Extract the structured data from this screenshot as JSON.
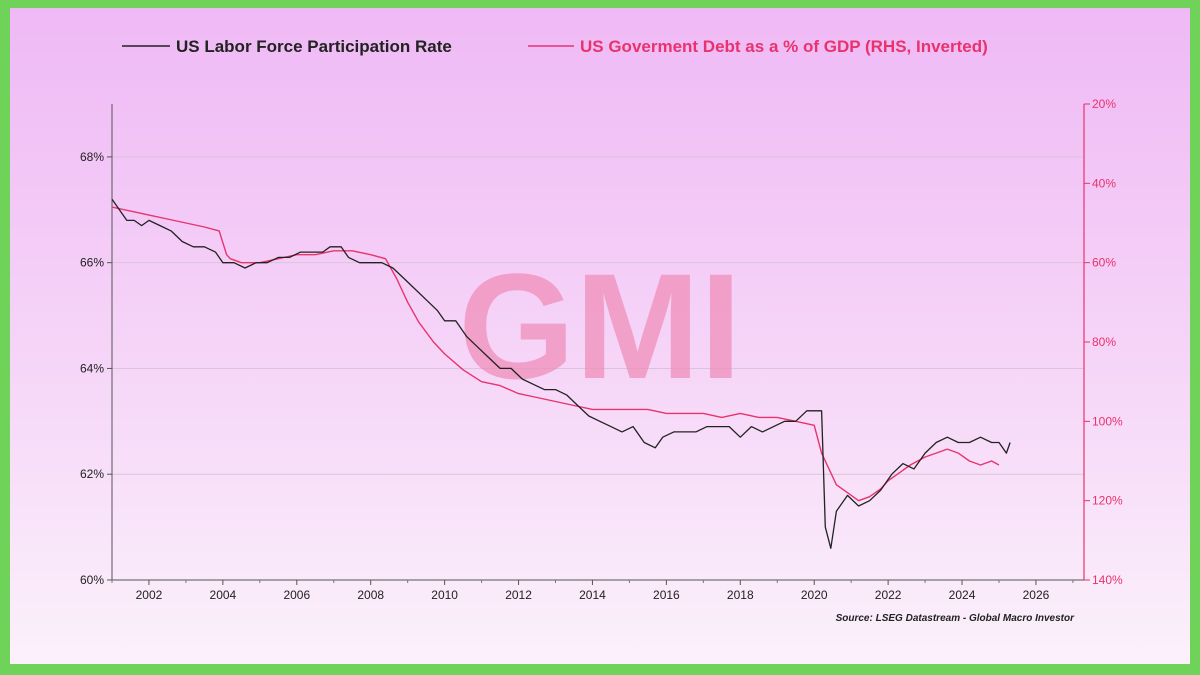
{
  "chart_data": {
    "type": "line",
    "title": "",
    "watermark": "GMI",
    "source": "Source: LSEG Datastream - Global Macro Investor",
    "x_ticks": [
      2002,
      2004,
      2006,
      2008,
      2010,
      2012,
      2014,
      2016,
      2018,
      2020,
      2022,
      2024,
      2026
    ],
    "xlim": [
      2001.0,
      2027.3
    ],
    "y_left": {
      "ticks": [
        60,
        62,
        64,
        66,
        68
      ],
      "tick_labels": [
        "60%",
        "62%",
        "64%",
        "66%",
        "68%"
      ],
      "lim": [
        60,
        69.0
      ]
    },
    "y_right": {
      "ticks": [
        20,
        40,
        60,
        80,
        100,
        120,
        140
      ],
      "tick_labels": [
        "20%",
        "40%",
        "60%",
        "80%",
        "100%",
        "120%",
        "140%"
      ],
      "lim": [
        20,
        140
      ],
      "inverted": true
    },
    "grid": true,
    "legend_position": "top",
    "colors": {
      "lfpr": "#222222",
      "debt": "#e8336d",
      "axis_left": "#555555",
      "axis_right": "#e8336d",
      "grid": "#d9c4dc"
    },
    "series": [
      {
        "name": "US Labor Force Participation Rate",
        "axis": "left",
        "x": [
          2001.0,
          2001.2,
          2001.4,
          2001.6,
          2001.8,
          2002.0,
          2002.3,
          2002.6,
          2002.9,
          2003.2,
          2003.5,
          2003.8,
          2004.0,
          2004.3,
          2004.6,
          2004.9,
          2005.2,
          2005.5,
          2005.8,
          2006.1,
          2006.4,
          2006.7,
          2006.9,
          2007.2,
          2007.4,
          2007.7,
          2008.0,
          2008.3,
          2008.6,
          2008.9,
          2009.2,
          2009.5,
          2009.8,
          2010.0,
          2010.3,
          2010.6,
          2010.9,
          2011.2,
          2011.5,
          2011.8,
          2012.1,
          2012.4,
          2012.7,
          2013.0,
          2013.3,
          2013.6,
          2013.9,
          2014.2,
          2014.5,
          2014.8,
          2015.1,
          2015.4,
          2015.7,
          2015.9,
          2016.2,
          2016.5,
          2016.8,
          2017.1,
          2017.4,
          2017.7,
          2018.0,
          2018.3,
          2018.6,
          2018.9,
          2019.2,
          2019.5,
          2019.8,
          2020.0,
          2020.2,
          2020.3,
          2020.45,
          2020.6,
          2020.9,
          2021.2,
          2021.5,
          2021.8,
          2022.1,
          2022.4,
          2022.7,
          2023.0,
          2023.3,
          2023.6,
          2023.9,
          2024.2,
          2024.5,
          2024.8,
          2025.0,
          2025.2,
          2025.3
        ],
        "y": [
          67.2,
          67.0,
          66.8,
          66.8,
          66.7,
          66.8,
          66.7,
          66.6,
          66.4,
          66.3,
          66.3,
          66.2,
          66.0,
          66.0,
          65.9,
          66.0,
          66.0,
          66.1,
          66.1,
          66.2,
          66.2,
          66.2,
          66.3,
          66.3,
          66.1,
          66.0,
          66.0,
          66.0,
          65.9,
          65.7,
          65.5,
          65.3,
          65.1,
          64.9,
          64.9,
          64.6,
          64.4,
          64.2,
          64.0,
          64.0,
          63.8,
          63.7,
          63.6,
          63.6,
          63.5,
          63.3,
          63.1,
          63.0,
          62.9,
          62.8,
          62.9,
          62.6,
          62.5,
          62.7,
          62.8,
          62.8,
          62.8,
          62.9,
          62.9,
          62.9,
          62.7,
          62.9,
          62.8,
          62.9,
          63.0,
          63.0,
          63.2,
          63.2,
          63.2,
          61.0,
          60.6,
          61.3,
          61.6,
          61.4,
          61.5,
          61.7,
          62.0,
          62.2,
          62.1,
          62.4,
          62.6,
          62.7,
          62.6,
          62.6,
          62.7,
          62.6,
          62.6,
          62.4,
          62.6
        ]
      },
      {
        "name": "US Goverment Debt as a % of GDP (RHS, Inverted)",
        "axis": "right",
        "x": [
          2001.0,
          2001.5,
          2002.0,
          2002.5,
          2003.0,
          2003.5,
          2003.9,
          2004.1,
          2004.2,
          2004.5,
          2005.0,
          2005.5,
          2006.0,
          2006.5,
          2007.0,
          2007.5,
          2008.0,
          2008.4,
          2008.7,
          2009.0,
          2009.3,
          2009.7,
          2010.0,
          2010.5,
          2011.0,
          2011.5,
          2012.0,
          2012.5,
          2013.0,
          2013.5,
          2014.0,
          2014.5,
          2015.0,
          2015.5,
          2016.0,
          2016.5,
          2017.0,
          2017.5,
          2018.0,
          2018.5,
          2019.0,
          2019.5,
          2020.0,
          2020.2,
          2020.4,
          2020.6,
          2020.9,
          2021.2,
          2021.5,
          2021.8,
          2022.0,
          2022.3,
          2022.6,
          2023.0,
          2023.3,
          2023.6,
          2023.9,
          2024.2,
          2024.5,
          2024.8,
          2025.0
        ],
        "y": [
          46,
          47,
          48,
          49,
          50,
          51,
          52,
          58,
          59,
          60,
          60,
          59,
          58,
          58,
          57,
          57,
          58,
          59,
          64,
          70,
          75,
          80,
          83,
          87,
          90,
          91,
          93,
          94,
          95,
          96,
          97,
          97,
          97,
          97,
          98,
          98,
          98,
          99,
          98,
          99,
          99,
          100,
          101,
          108,
          112,
          116,
          118,
          120,
          119,
          117,
          115,
          113,
          111,
          109,
          108,
          107,
          108,
          110,
          111,
          110,
          111
        ]
      }
    ]
  }
}
